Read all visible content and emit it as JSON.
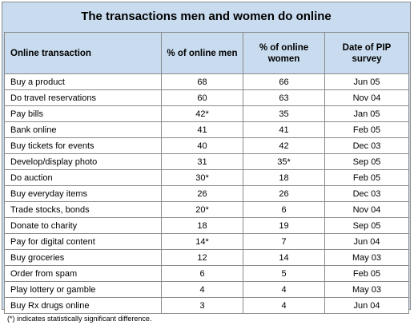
{
  "chart_data": {
    "type": "table",
    "title": "The transactions men and women do online",
    "columns": [
      "Online transaction",
      "% of online men",
      "% of online women",
      "Date of PIP survey"
    ],
    "rows": [
      {
        "transaction": "Buy a product",
        "men": "68",
        "women": "66",
        "date": "Jun 05"
      },
      {
        "transaction": "Do travel reservations",
        "men": "60",
        "women": "63",
        "date": "Nov 04"
      },
      {
        "transaction": "Pay bills",
        "men": "42*",
        "women": "35",
        "date": "Jan 05"
      },
      {
        "transaction": "Bank online",
        "men": "41",
        "women": "41",
        "date": "Feb 05"
      },
      {
        "transaction": "Buy tickets for events",
        "men": "40",
        "women": "42",
        "date": "Dec 03"
      },
      {
        "transaction": "Develop/display photo",
        "men": "31",
        "women": "35*",
        "date": "Sep 05"
      },
      {
        "transaction": "Do auction",
        "men": "30*",
        "women": "18",
        "date": "Feb 05"
      },
      {
        "transaction": "Buy everyday items",
        "men": "26",
        "women": "26",
        "date": "Dec 03"
      },
      {
        "transaction": "Trade stocks, bonds",
        "men": "20*",
        "women": "6",
        "date": "Nov 04"
      },
      {
        "transaction": "Donate to charity",
        "men": "18",
        "women": "19",
        "date": "Sep 05"
      },
      {
        "transaction": "Pay for digital content",
        "men": "14*",
        "women": "7",
        "date": "Jun 04"
      },
      {
        "transaction": "Buy groceries",
        "men": "12",
        "women": "14",
        "date": "May 03"
      },
      {
        "transaction": "Order from spam",
        "men": "6",
        "women": "5",
        "date": "Feb 05"
      },
      {
        "transaction": "Play lottery or gamble",
        "men": "4",
        "women": "4",
        "date": "May 03"
      },
      {
        "transaction": "Buy Rx drugs online",
        "men": "3",
        "women": "4",
        "date": "Jun 04"
      }
    ],
    "footnote": "(*) indicates statistically significant difference."
  },
  "colors": {
    "header_background": "#c9dcef",
    "border": "#8a8a8a",
    "cell_background": "#ffffff"
  }
}
